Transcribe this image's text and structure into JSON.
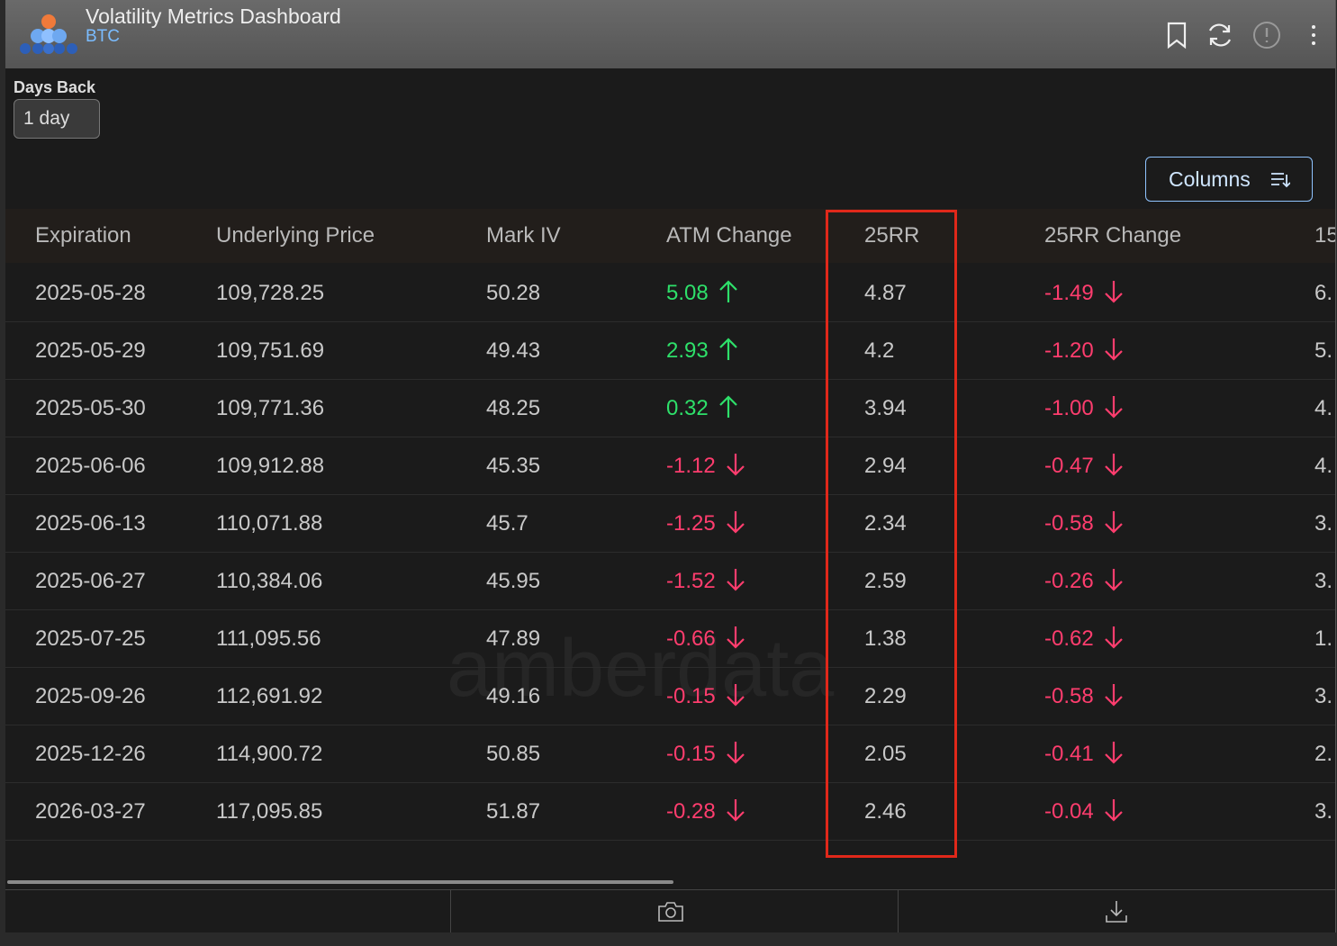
{
  "header": {
    "title": "Volatility Metrics Dashboard",
    "subtitle": "BTC"
  },
  "filter": {
    "label": "Days Back",
    "value": "1 day"
  },
  "columns_button": "Columns",
  "watermark": "amberdata",
  "table": {
    "headers": [
      "Expiration",
      "Underlying Price",
      "Mark IV",
      "ATM Change",
      "25RR",
      "25RR Change",
      "15"
    ],
    "rows": [
      [
        "2025-05-28",
        "109,728.25",
        "50.28",
        "5.08",
        "4.87",
        "-1.49",
        "6."
      ],
      [
        "2025-05-29",
        "109,751.69",
        "49.43",
        "2.93",
        "4.2",
        "-1.20",
        "5."
      ],
      [
        "2025-05-30",
        "109,771.36",
        "48.25",
        "0.32",
        "3.94",
        "-1.00",
        "4."
      ],
      [
        "2025-06-06",
        "109,912.88",
        "45.35",
        "-1.12",
        "2.94",
        "-0.47",
        "4."
      ],
      [
        "2025-06-13",
        "110,071.88",
        "45.7",
        "-1.25",
        "2.34",
        "-0.58",
        "3."
      ],
      [
        "2025-06-27",
        "110,384.06",
        "45.95",
        "-1.52",
        "2.59",
        "-0.26",
        "3."
      ],
      [
        "2025-07-25",
        "111,095.56",
        "47.89",
        "-0.66",
        "1.38",
        "-0.62",
        "1."
      ],
      [
        "2025-09-26",
        "112,691.92",
        "49.16",
        "-0.15",
        "2.29",
        "-0.58",
        "3."
      ],
      [
        "2025-12-26",
        "114,900.72",
        "50.85",
        "-0.15",
        "2.05",
        "-0.41",
        "2."
      ],
      [
        "2026-03-27",
        "117,095.85",
        "51.87",
        "-0.28",
        "2.46",
        "-0.04",
        "3."
      ]
    ]
  }
}
